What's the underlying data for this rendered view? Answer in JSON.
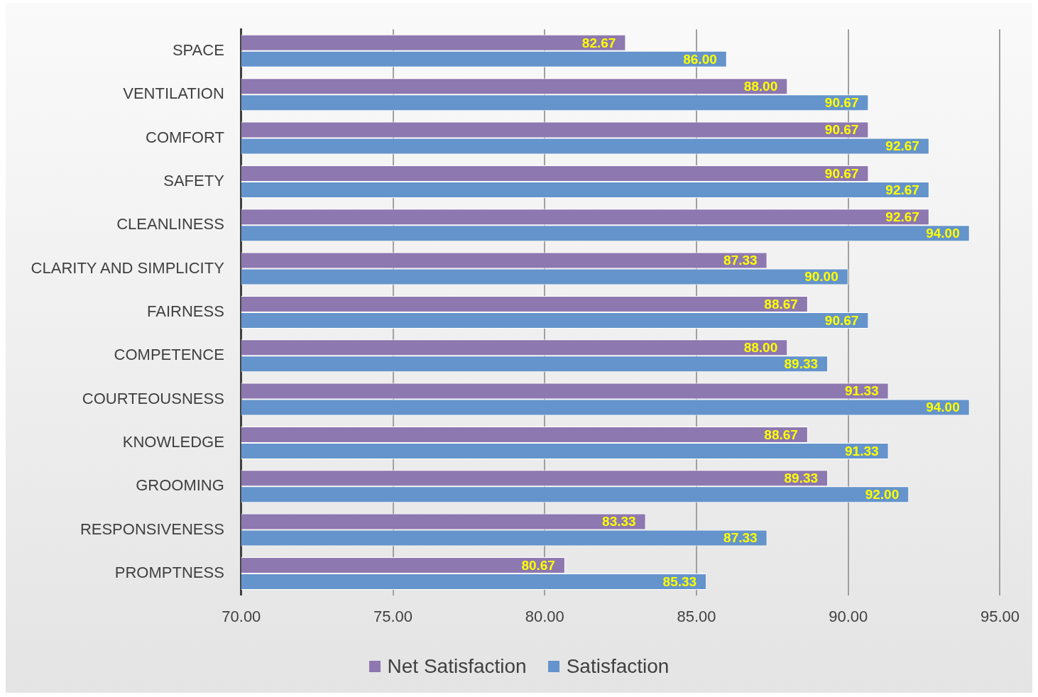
{
  "chart_data": {
    "type": "bar",
    "orientation": "horizontal",
    "categories": [
      "SPACE",
      "VENTILATION",
      "COMFORT",
      "SAFETY",
      "CLEANLINESS",
      "CLARITY AND SIMPLICITY",
      "FAIRNESS",
      "COMPETENCE",
      "COURTEOUSNESS",
      "KNOWLEDGE",
      "GROOMING",
      "RESPONSIVENESS",
      "PROMPTNESS"
    ],
    "series": [
      {
        "name": "Net Satisfaction",
        "color": "#8e78b0",
        "values": [
          82.67,
          88.0,
          90.67,
          90.67,
          92.67,
          87.33,
          88.67,
          88.0,
          91.33,
          88.67,
          89.33,
          83.33,
          80.67
        ],
        "value_labels": [
          "82.67",
          "88.00",
          "90.67",
          "90.67",
          "92.67",
          "87.33",
          "88.67",
          "88.00",
          "91.33",
          "88.67",
          "89.33",
          "83.33",
          "80.67"
        ]
      },
      {
        "name": "Satisfaction",
        "color": "#6494cb",
        "values": [
          86.0,
          90.67,
          92.67,
          92.67,
          94.0,
          90.0,
          90.67,
          89.33,
          94.0,
          91.33,
          92.0,
          87.33,
          85.33
        ],
        "value_labels": [
          "86.00",
          "90.67",
          "92.67",
          "92.67",
          "94.00",
          "90.00",
          "90.67",
          "89.33",
          "94.00",
          "91.33",
          "92.00",
          "87.33",
          "85.33"
        ]
      }
    ],
    "xlim": [
      70,
      95
    ],
    "xticks": [
      {
        "value": 70,
        "label": "70.00"
      },
      {
        "value": 75,
        "label": "75.00"
      },
      {
        "value": 80,
        "label": "80.00"
      },
      {
        "value": 85,
        "label": "85.00"
      },
      {
        "value": 90,
        "label": "90.00"
      },
      {
        "value": 95,
        "label": "95.00"
      }
    ],
    "grid": "x",
    "legend": "bottom"
  }
}
